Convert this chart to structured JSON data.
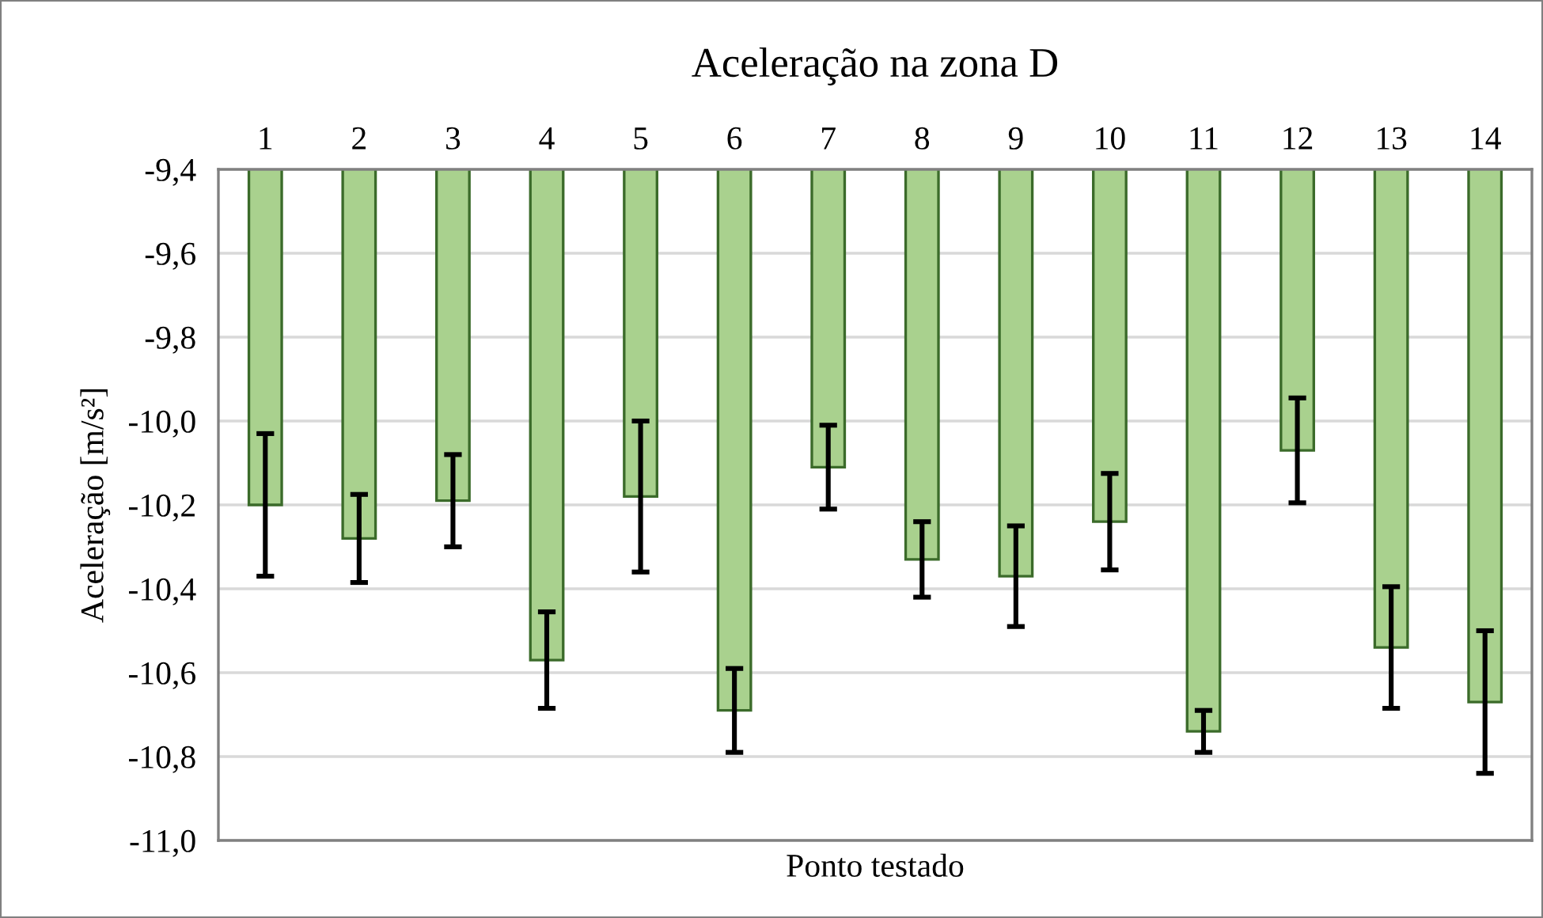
{
  "chart_data": {
    "type": "bar",
    "title": "Aceleração na zona D",
    "xlabel": "Ponto testado",
    "ylabel": "Aceleração [m/s²]",
    "categories": [
      "1",
      "2",
      "3",
      "4",
      "5",
      "6",
      "7",
      "8",
      "9",
      "10",
      "11",
      "12",
      "13",
      "14"
    ],
    "values": [
      -10.2,
      -10.28,
      -10.19,
      -10.57,
      -10.18,
      -10.69,
      -10.11,
      -10.33,
      -10.37,
      -10.24,
      -10.74,
      -10.07,
      -10.54,
      -10.67
    ],
    "errors": [
      0.17,
      0.105,
      0.11,
      0.115,
      0.18,
      0.1,
      0.1,
      0.09,
      0.12,
      0.115,
      0.05,
      0.125,
      0.145,
      0.17
    ],
    "color": "#a9d18e",
    "ylim": [
      -11.0,
      -9.4
    ],
    "yticks": [
      {
        "value": -11.0,
        "label": "-11,0"
      },
      {
        "value": -10.8,
        "label": "-10,8"
      },
      {
        "value": -10.6,
        "label": "-10,6"
      },
      {
        "value": -10.4,
        "label": "-10,4"
      },
      {
        "value": -10.2,
        "label": "-10,2"
      },
      {
        "value": -10.0,
        "label": "-10,0"
      },
      {
        "value": -9.8,
        "label": "-9,8"
      },
      {
        "value": -9.6,
        "label": "-9,6"
      },
      {
        "value": -9.4,
        "label": "-9,4"
      }
    ],
    "grid": "y",
    "legend": false
  }
}
